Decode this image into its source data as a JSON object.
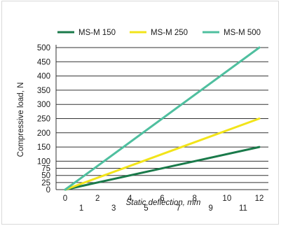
{
  "chart_data": {
    "type": "line",
    "xlabel": "Static deflection, mm",
    "ylabel": "Compressive load, N",
    "xlim": [
      0,
      12
    ],
    "ylim": [
      0,
      500
    ],
    "x_ticks_row1": [
      "0",
      "2",
      "4",
      "6",
      "8",
      "10",
      "12"
    ],
    "x_ticks_row2": [
      "1",
      "3",
      "5",
      "7",
      "9",
      "11"
    ],
    "y_ticks": [
      "0",
      "25",
      "50",
      "75",
      "100",
      "150",
      "200",
      "250",
      "300",
      "350",
      "400",
      "450",
      "500"
    ],
    "y_tick_values": [
      0,
      25,
      50,
      75,
      100,
      150,
      200,
      250,
      300,
      350,
      400,
      450,
      500
    ],
    "grid": "horizontal",
    "legend_position": "top",
    "series": [
      {
        "name": "MS-M 150",
        "color": "#1a7a4a",
        "x": [
          0,
          12
        ],
        "y": [
          0,
          150
        ]
      },
      {
        "name": "MS-M 250",
        "color": "#f2e41a",
        "x": [
          0,
          12
        ],
        "y": [
          0,
          250
        ]
      },
      {
        "name": "MS-M 500",
        "color": "#4fbf9f",
        "x": [
          0,
          12
        ],
        "y": [
          0,
          500
        ]
      }
    ]
  }
}
